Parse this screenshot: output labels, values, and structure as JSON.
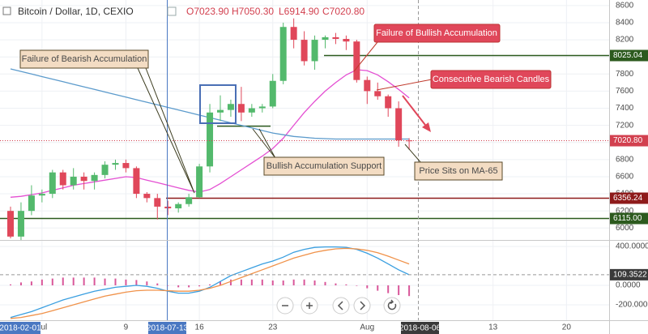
{
  "header": {
    "symbol": "Bitcoin / Dollar, 1D, CEXIO",
    "ohlc": [
      "O7023.90",
      "H7050.30",
      "L6914.90",
      "C7020.80"
    ]
  },
  "chart_data": [
    {
      "type": "candlestick",
      "categories": [
        null,
        null,
        null,
        "Jul",
        null,
        null,
        null,
        null,
        null,
        null,
        null,
        "9",
        null,
        null,
        null,
        null,
        null,
        null,
        "16",
        null,
        null,
        null,
        null,
        null,
        null,
        "23",
        null,
        null,
        null,
        null,
        null,
        null,
        null,
        null,
        "Aug",
        null,
        null,
        null,
        null,
        null,
        null,
        null,
        null,
        null,
        null,
        null,
        "13",
        null,
        null,
        null,
        null,
        null,
        null,
        "20",
        null,
        null
      ],
      "open": [
        6200,
        5900,
        6200,
        6380,
        6400,
        6650,
        6500,
        6600,
        6550,
        6620,
        6740,
        6760,
        6700,
        6400,
        6350,
        6250,
        6230,
        6280,
        6360,
        6720,
        7350,
        7380,
        7450,
        7350,
        7400,
        7420,
        7720,
        8350,
        8200,
        7950,
        8200,
        8230,
        8210,
        8180,
        7730,
        7600,
        7540,
        7400,
        7023.9,
        null,
        null,
        null,
        null,
        null,
        null,
        null,
        null,
        null,
        null,
        null,
        null,
        null,
        null,
        null,
        null,
        null
      ],
      "high": [
        6250,
        6300,
        6500,
        6450,
        6680,
        6680,
        6700,
        6650,
        6650,
        6780,
        6800,
        6800,
        6720,
        6420,
        6400,
        6320,
        6300,
        6400,
        6750,
        7450,
        7550,
        7500,
        7650,
        7450,
        7450,
        7800,
        8400,
        8450,
        8300,
        8250,
        8250,
        8280,
        8250,
        8200,
        7770,
        7700,
        7560,
        7480,
        7050.3,
        null,
        null,
        null,
        null,
        null,
        null,
        null,
        null,
        null,
        null,
        null,
        null,
        null,
        null,
        null,
        null,
        null
      ],
      "low": [
        5880,
        5850,
        6150,
        6300,
        6350,
        6450,
        6450,
        6450,
        6450,
        6580,
        6680,
        6650,
        6350,
        6300,
        6100,
        6150,
        6180,
        6250,
        6350,
        6650,
        7250,
        7300,
        7250,
        7300,
        7350,
        7400,
        7680,
        8100,
        7900,
        7850,
        8100,
        8150,
        8080,
        7700,
        7450,
        7500,
        7300,
        6950,
        6914.9,
        null,
        null,
        null,
        null,
        null,
        null,
        null,
        null,
        null,
        null,
        null,
        null,
        null,
        null,
        null,
        null,
        null
      ],
      "close": [
        5900,
        6200,
        6380,
        6400,
        6650,
        6500,
        6600,
        6550,
        6620,
        6740,
        6760,
        6700,
        6400,
        6350,
        6250,
        6230,
        6280,
        6360,
        6720,
        7350,
        7380,
        7450,
        7350,
        7400,
        7420,
        7720,
        8350,
        8200,
        7950,
        8200,
        8230,
        8210,
        8180,
        7730,
        7600,
        7540,
        7400,
        7023.9,
        7020.8,
        null,
        null,
        null,
        null,
        null,
        null,
        null,
        null,
        null,
        null,
        null,
        null,
        null,
        null,
        null,
        null,
        null
      ],
      "up_color": "#53b96c",
      "down_color": "#e0475a",
      "ylim": [
        5870,
        8665
      ],
      "yticks": [
        6000,
        6200,
        6400,
        6600,
        6800,
        7000,
        7200,
        7400,
        7600,
        7800,
        8000,
        8200,
        8400,
        8600
      ],
      "grid": true,
      "overlays": [
        {
          "color": "#e44fd2",
          "values": [
            6360,
            6370,
            6390,
            6410,
            6440,
            6470,
            6500,
            6520,
            6540,
            6560,
            6580,
            6600,
            6590,
            6560,
            6530,
            6500,
            6470,
            6440,
            6420,
            6450,
            6520,
            6600,
            6680,
            6760,
            6840,
            6930,
            7050,
            7200,
            7350,
            7480,
            7600,
            7700,
            7790,
            7850,
            7840,
            7790,
            7710,
            7620,
            7520,
            null,
            null,
            null,
            null,
            null,
            null,
            null,
            null,
            null,
            null,
            null,
            null,
            null,
            null,
            null,
            null,
            null
          ]
        },
        {
          "color": "#5c9bcc",
          "values": [
            7860,
            7830,
            7800,
            7770,
            7740,
            7710,
            7680,
            7650,
            7620,
            7590,
            7560,
            7530,
            7500,
            7470,
            7440,
            7410,
            7380,
            7350,
            7320,
            7290,
            7260,
            7230,
            7200,
            7170,
            7140,
            7110,
            7090,
            7070,
            7060,
            7050,
            7045,
            7040,
            7040,
            7040,
            7040,
            7040,
            7040,
            7040,
            7040,
            null,
            null,
            null,
            null,
            null,
            null,
            null,
            null,
            null,
            null,
            null,
            null,
            null,
            null,
            null,
            null,
            null
          ]
        }
      ],
      "levels": [
        {
          "price": 8025.04,
          "color": "#2c5a1e"
        },
        {
          "price": 6356.24,
          "color": "#8e1b1b"
        },
        {
          "price": {
            "value": 6115,
            "label": "6115.00"
          },
          "color": "#2c5a1e"
        }
      ],
      "support": {
        "price": 7190,
        "color": "#2c5a1e"
      },
      "last_price": {
        "value": 7020.8,
        "label": "7020.80",
        "color": "#d2404f"
      },
      "crosshair_labels": [
        "2018-02-01",
        "2018-07-13",
        "2018-08-06"
      ],
      "annotations": [
        "Failure of Bearish Accumulation",
        "Failure of Bullish Accumulation",
        "Consecutive Bearish Candles",
        "Bullish Accumulation Support",
        "Price Sits on MA-65"
      ]
    },
    {
      "type": "macd",
      "histogram": {
        "color": "#d9579a",
        "values": [
          10,
          30,
          40,
          60,
          70,
          80,
          80,
          80,
          80,
          70,
          70,
          60,
          55,
          40,
          20,
          -5,
          -20,
          -20,
          -10,
          10,
          40,
          60,
          60,
          60,
          60,
          50,
          50,
          60,
          60,
          50,
          35,
          20,
          10,
          -5,
          -30,
          -55,
          -80,
          -100,
          -110,
          null,
          null,
          null,
          null,
          null,
          null,
          null,
          null,
          null,
          null,
          null,
          null,
          null,
          null,
          null,
          null,
          null
        ]
      },
      "series": [
        {
          "color": "#3a9fe0",
          "values": [
            -330,
            -300,
            -270,
            -230,
            -190,
            -150,
            -120,
            -90,
            -60,
            -40,
            -20,
            -10,
            0,
            -10,
            -30,
            -60,
            -80,
            -80,
            -60,
            -20,
            40,
            100,
            140,
            180,
            220,
            250,
            290,
            340,
            370,
            390,
            395,
            395,
            390,
            370,
            330,
            280,
            220,
            160,
            109.3522,
            null,
            null,
            null,
            null,
            null,
            null,
            null,
            null,
            null,
            null,
            null,
            null,
            null,
            null,
            null,
            null,
            null
          ]
        },
        {
          "color": "#f0924a",
          "values": [
            -340,
            -330,
            -310,
            -290,
            -260,
            -230,
            -200,
            -170,
            -140,
            -110,
            -90,
            -70,
            -55,
            -50,
            -50,
            -55,
            -60,
            -60,
            -50,
            -30,
            0,
            40,
            80,
            120,
            160,
            200,
            240,
            280,
            310,
            340,
            360,
            375,
            380,
            375,
            360,
            335,
            300,
            260,
            220,
            null,
            null,
            null,
            null,
            null,
            null,
            null,
            null,
            null,
            null,
            null,
            null,
            null,
            null,
            null,
            null,
            null
          ]
        }
      ],
      "ylim": [
        -350,
        450
      ],
      "yticks": [
        {
          "value": 400,
          "label": "400.0000"
        },
        {
          "value": 0,
          "label": "0.0000"
        },
        {
          "value": -200,
          "label": "-200.0000"
        }
      ],
      "current_value": 109.3522
    }
  ]
}
